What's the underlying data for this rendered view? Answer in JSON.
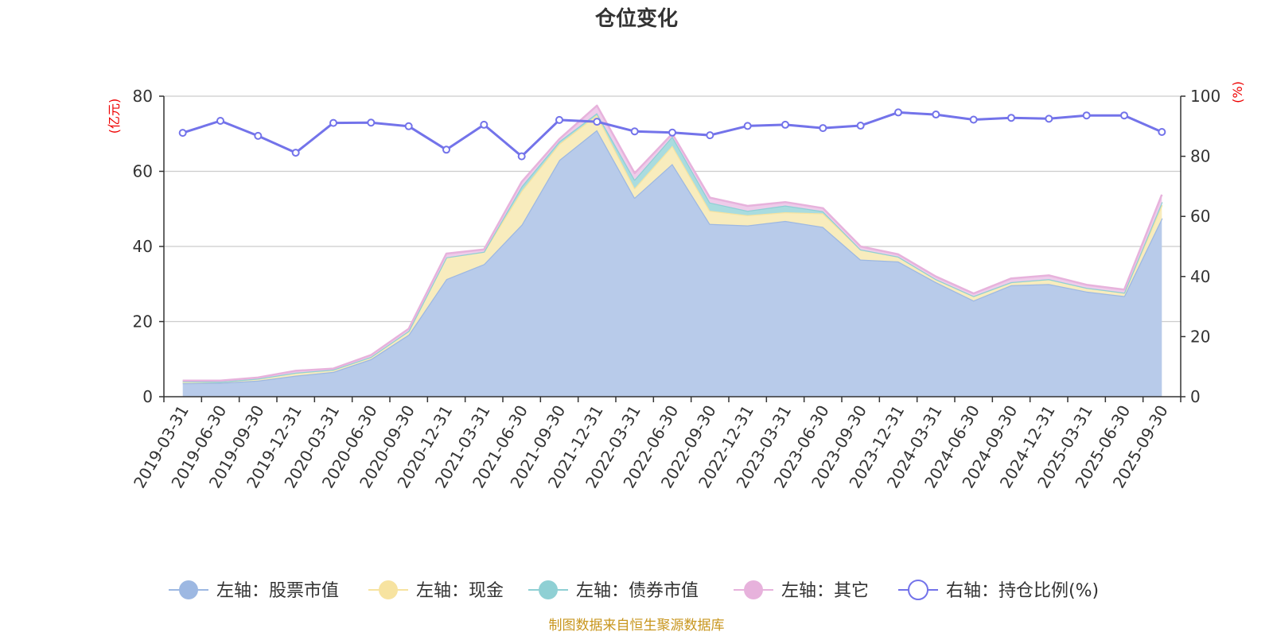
{
  "chart_data": {
    "type": "area",
    "title": "仓位变化",
    "left_axis_unit": "(亿元)",
    "right_axis_unit": "(%)",
    "left_ylim": [
      0,
      80
    ],
    "left_yticks": [
      0,
      20,
      40,
      60,
      80
    ],
    "right_ylim": [
      0,
      100
    ],
    "right_yticks": [
      0,
      20,
      40,
      60,
      80,
      100
    ],
    "grid": true,
    "legend_position": "bottom",
    "categories": [
      "2019-03-31",
      "2019-06-30",
      "2019-09-30",
      "2019-12-31",
      "2020-03-31",
      "2020-06-30",
      "2020-09-30",
      "2020-12-31",
      "2021-03-31",
      "2021-06-30",
      "2021-09-30",
      "2021-12-31",
      "2022-03-31",
      "2022-06-30",
      "2022-09-30",
      "2022-12-31",
      "2023-03-31",
      "2023-06-30",
      "2023-09-30",
      "2023-12-31",
      "2024-03-31",
      "2024-06-30",
      "2024-09-30",
      "2024-12-31",
      "2025-03-31",
      "2025-06-30",
      "2025-09-30"
    ],
    "series": [
      {
        "name": "左轴：股票市值",
        "axis": "left",
        "color": "#9db8e2",
        "fill": "#b8cbea",
        "values": [
          3.6,
          3.7,
          4.3,
          5.6,
          6.6,
          10.0,
          16.5,
          31.3,
          35.3,
          45.8,
          63.0,
          71.0,
          53.0,
          62.0,
          46.0,
          45.6,
          46.8,
          45.2,
          36.5,
          36.0,
          30.5,
          25.6,
          29.7,
          30.0,
          28.0,
          26.8,
          47.5
        ]
      },
      {
        "name": "左轴：现金",
        "axis": "left",
        "color": "#f7e3a0",
        "fill": "#f8ecbd",
        "values": [
          0.5,
          0.3,
          0.5,
          0.8,
          0.6,
          0.6,
          1.0,
          5.8,
          3.3,
          9.0,
          4.3,
          4.0,
          2.5,
          4.8,
          3.5,
          2.7,
          2.3,
          3.6,
          2.7,
          1.3,
          0.8,
          1.2,
          0.8,
          1.3,
          1.0,
          0.9,
          3.5
        ]
      },
      {
        "name": "左轴：债券市值",
        "axis": "left",
        "color": "#8fd0d4",
        "fill": "#a9dcdf",
        "values": [
          0,
          0,
          0,
          0,
          0,
          0,
          0,
          0,
          0,
          1.2,
          0.7,
          0.5,
          2.3,
          2.5,
          2.2,
          1.2,
          1.8,
          0.6,
          0,
          0,
          0,
          0,
          0,
          0,
          0,
          0,
          0.8
        ]
      },
      {
        "name": "左轴：其它",
        "axis": "left",
        "color": "#e7b2dc",
        "fill": "#eeccea",
        "values": [
          0.2,
          0.3,
          0.3,
          0.5,
          0.3,
          0.5,
          0.6,
          1.0,
          0.6,
          1.2,
          0.6,
          2.0,
          1.7,
          0.7,
          1.3,
          1.3,
          0.9,
          0.8,
          0.8,
          0.6,
          0.7,
          0.7,
          1.0,
          1.0,
          0.8,
          0.8,
          2.0
        ]
      },
      {
        "name": "右轴：持仓比例(%)",
        "axis": "right",
        "color": "#7373ea",
        "values": [
          87.8,
          91.8,
          86.8,
          81.2,
          91.1,
          91.2,
          90.0,
          82.2,
          90.5,
          80.0,
          92.1,
          91.5,
          88.3,
          87.9,
          87.0,
          90.1,
          90.5,
          89.4,
          90.2,
          94.6,
          93.9,
          92.2,
          92.8,
          92.5,
          93.6,
          93.6,
          88.1
        ]
      }
    ]
  },
  "source_text": "制图数据来自恒生聚源数据库",
  "colors": {
    "axis_line": "#333333",
    "grid": "#cccccc",
    "unit_red": "#ee0000",
    "source_gold": "#c8961e"
  }
}
